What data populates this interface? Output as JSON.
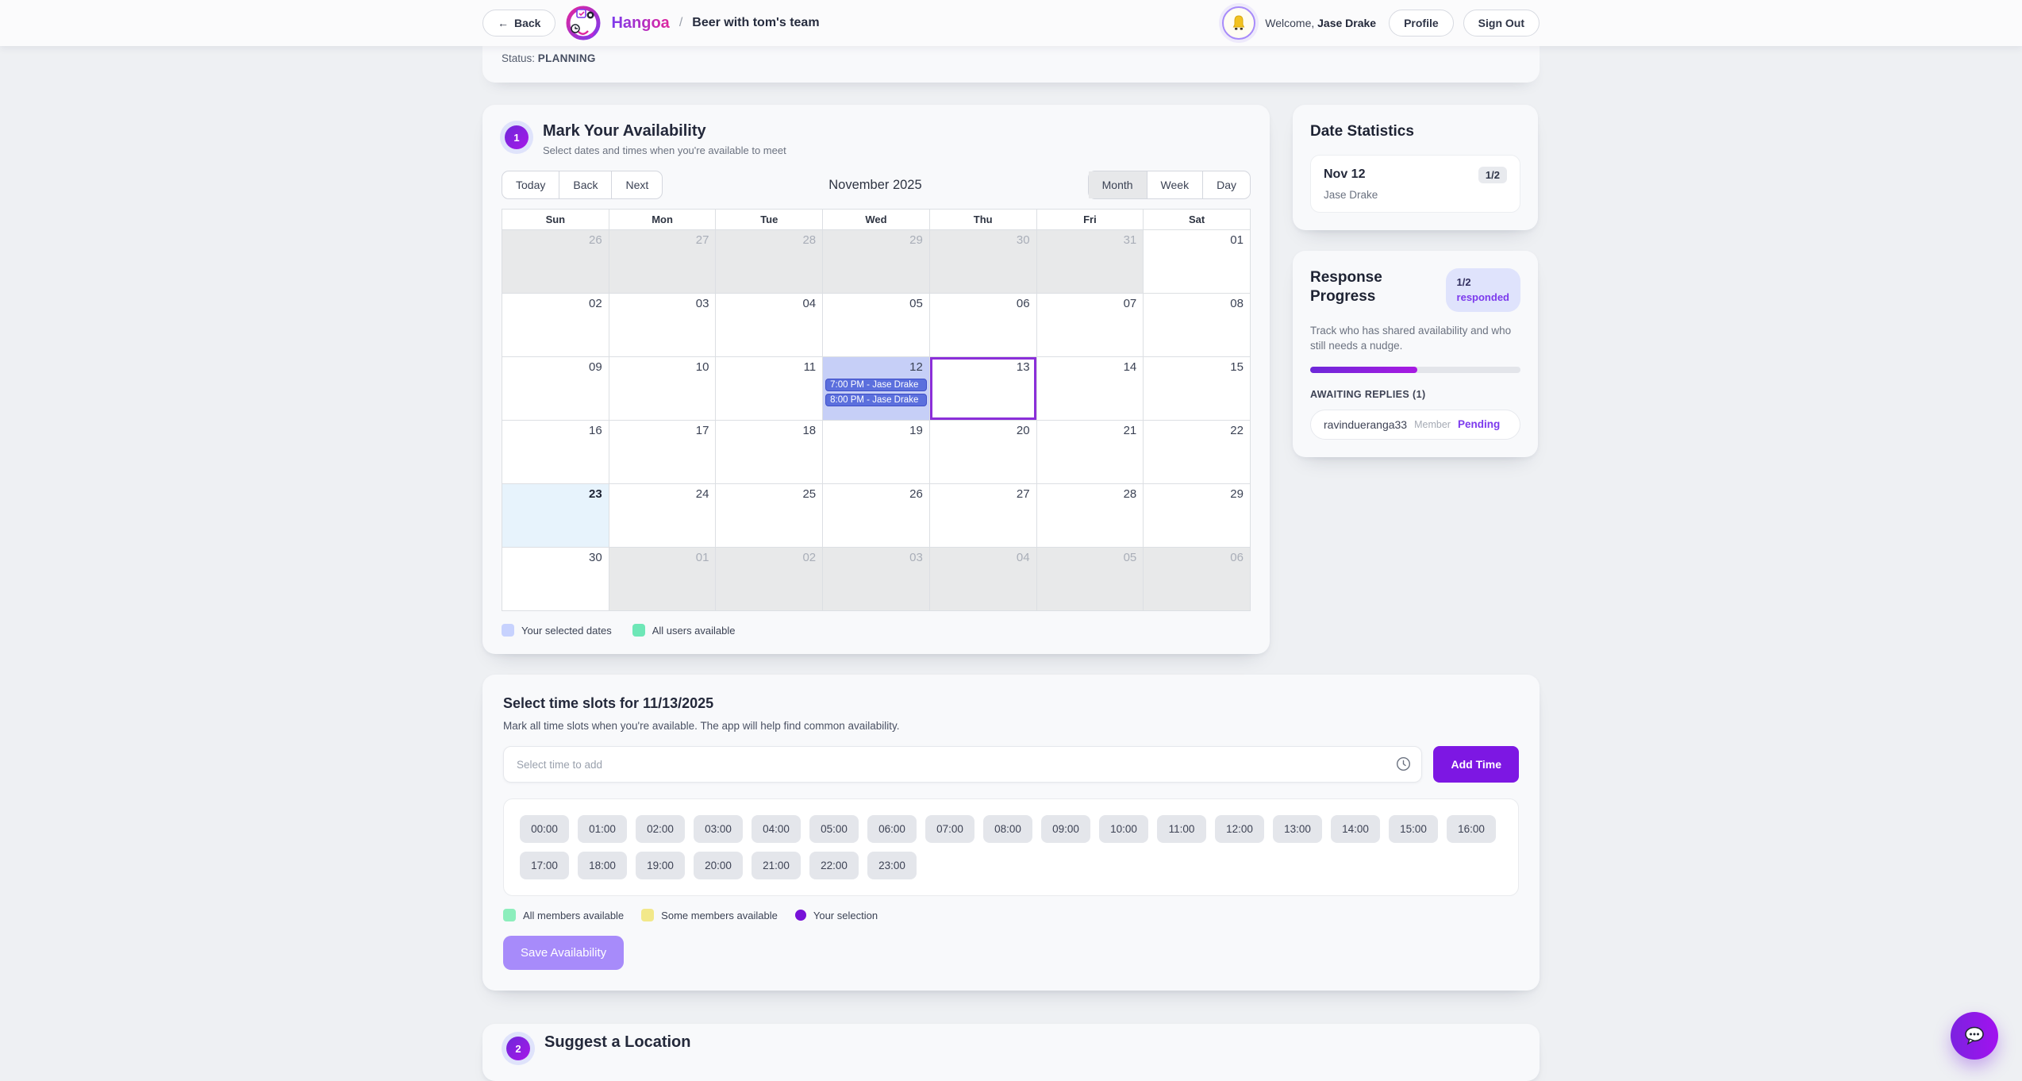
{
  "header": {
    "back_arrow": "←",
    "back_label": "Back",
    "brand": "Hangoa",
    "breadcrumb_separator": "/",
    "event_title": "Beer with tom's team",
    "welcome_prefix": "Welcome, ",
    "user_name": "Jase Drake",
    "profile_label": "Profile",
    "signout_label": "Sign Out"
  },
  "status_card": {
    "label": "Status: ",
    "value": "PLANNING"
  },
  "availability": {
    "step_number": "1",
    "title": "Mark Your Availability",
    "subtitle": "Select dates and times when you're available to meet",
    "toolbar": {
      "nav_buttons": [
        "Today",
        "Back",
        "Next"
      ],
      "month_title": "November 2025",
      "views": [
        "Month",
        "Week",
        "Day"
      ],
      "active_view": "Month"
    },
    "calendar": {
      "weekdays": [
        "Sun",
        "Mon",
        "Tue",
        "Wed",
        "Thu",
        "Fri",
        "Sat"
      ],
      "weeks": [
        [
          {
            "day": "26",
            "type": "off"
          },
          {
            "day": "27",
            "type": "off"
          },
          {
            "day": "28",
            "type": "off"
          },
          {
            "day": "29",
            "type": "off"
          },
          {
            "day": "30",
            "type": "off"
          },
          {
            "day": "31",
            "type": "off"
          },
          {
            "day": "01",
            "type": "normal"
          }
        ],
        [
          {
            "day": "02",
            "type": "normal"
          },
          {
            "day": "03",
            "type": "normal"
          },
          {
            "day": "04",
            "type": "normal"
          },
          {
            "day": "05",
            "type": "normal"
          },
          {
            "day": "06",
            "type": "normal"
          },
          {
            "day": "07",
            "type": "normal"
          },
          {
            "day": "08",
            "type": "normal"
          }
        ],
        [
          {
            "day": "09",
            "type": "normal"
          },
          {
            "day": "10",
            "type": "normal"
          },
          {
            "day": "11",
            "type": "normal"
          },
          {
            "day": "12",
            "type": "selected",
            "events": [
              "7:00 PM - Jase Drake",
              "8:00 PM - Jase Drake"
            ]
          },
          {
            "day": "13",
            "type": "outlined"
          },
          {
            "day": "14",
            "type": "normal"
          },
          {
            "day": "15",
            "type": "normal"
          }
        ],
        [
          {
            "day": "16",
            "type": "normal"
          },
          {
            "day": "17",
            "type": "normal"
          },
          {
            "day": "18",
            "type": "normal"
          },
          {
            "day": "19",
            "type": "normal"
          },
          {
            "day": "20",
            "type": "normal"
          },
          {
            "day": "21",
            "type": "normal"
          },
          {
            "day": "22",
            "type": "normal"
          }
        ],
        [
          {
            "day": "23",
            "type": "today"
          },
          {
            "day": "24",
            "type": "normal"
          },
          {
            "day": "25",
            "type": "normal"
          },
          {
            "day": "26",
            "type": "normal"
          },
          {
            "day": "27",
            "type": "normal"
          },
          {
            "day": "28",
            "type": "normal"
          },
          {
            "day": "29",
            "type": "normal"
          }
        ],
        [
          {
            "day": "30",
            "type": "normal"
          },
          {
            "day": "01",
            "type": "off"
          },
          {
            "day": "02",
            "type": "off"
          },
          {
            "day": "03",
            "type": "off"
          },
          {
            "day": "04",
            "type": "off"
          },
          {
            "day": "05",
            "type": "off"
          },
          {
            "day": "06",
            "type": "off"
          }
        ]
      ],
      "legend": [
        {
          "label": "Your selected dates",
          "color": "#c7d2fe"
        },
        {
          "label": "All users available",
          "color": "#6ee7b7"
        }
      ]
    }
  },
  "date_statistics": {
    "title": "Date Statistics",
    "items": [
      {
        "date": "Nov 12",
        "count": "1/2",
        "names": "Jase Drake"
      }
    ]
  },
  "response_progress": {
    "title": "Response Progress",
    "badge_line1": "1/2",
    "badge_line2": "responded",
    "description": "Track who has shared availability and who still needs a nudge.",
    "percent": 51,
    "awaiting_label": "AWAITING REPLIES (1)",
    "awaiting": [
      {
        "name": "ravindueranga33",
        "role": "Member",
        "status": "Pending"
      }
    ]
  },
  "time_slots": {
    "title": "Select time slots for 11/13/2025",
    "subtitle": "Mark all time slots when you're available. The app will help find common availability.",
    "input_placeholder": "Select time to add",
    "add_button_label": "Add Time",
    "slots": [
      "00:00",
      "01:00",
      "02:00",
      "03:00",
      "04:00",
      "05:00",
      "06:00",
      "07:00",
      "08:00",
      "09:00",
      "10:00",
      "11:00",
      "12:00",
      "13:00",
      "14:00",
      "15:00",
      "16:00",
      "17:00",
      "18:00",
      "19:00",
      "20:00",
      "21:00",
      "22:00",
      "23:00"
    ],
    "legend": [
      {
        "label": "All members available",
        "color": "#8ceebc",
        "shape": "square"
      },
      {
        "label": "Some members available",
        "color": "#f2e88a",
        "shape": "square"
      },
      {
        "label": "Your selection",
        "color": "#7712d8",
        "shape": "round"
      }
    ],
    "save_button_label": "Save Availability"
  },
  "location_section": {
    "step_number": "2",
    "title": "Suggest a Location"
  },
  "colors": {
    "accent_purple": "#7d17e3",
    "selected_day": "#c6cff7",
    "today_day": "#e7f3fc",
    "outlined_day": "#8b2fd9",
    "event_pill": "#5b6fdd",
    "save_disabled": "#a78bfa"
  }
}
